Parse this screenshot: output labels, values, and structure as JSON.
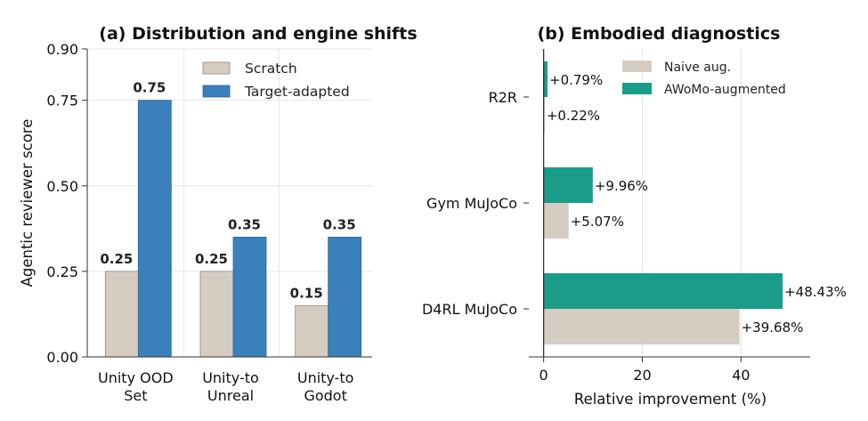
{
  "chart_data": [
    {
      "type": "bar",
      "title": "(a) Distribution and engine shifts",
      "xlabel": "",
      "ylabel": "Agentic reviewer score",
      "categories": [
        [
          "Unity OOD",
          "Set"
        ],
        [
          "Unity-to",
          "Unreal"
        ],
        [
          "Unity-to",
          "Godot"
        ]
      ],
      "series": [
        {
          "name": "Scratch",
          "values": [
            0.25,
            0.25,
            0.15
          ],
          "color": "#d5cdc1"
        },
        {
          "name": "Target-adapted",
          "values": [
            0.75,
            0.35,
            0.35
          ],
          "color": "#3a81bc"
        }
      ],
      "data_labels": [
        [
          "0.25",
          "0.25",
          "0.15"
        ],
        [
          "0.75",
          "0.35",
          "0.35"
        ]
      ],
      "ylim": [
        0,
        0.9
      ],
      "yticks": [
        0.0,
        0.25,
        0.5,
        0.75,
        0.9
      ],
      "ytick_labels": [
        "0.00",
        "0.25",
        "0.50",
        "0.75",
        "0.90"
      ],
      "grid": true,
      "legend_position": "top-right"
    },
    {
      "type": "bar",
      "orientation": "horizontal",
      "title": "(b) Embodied diagnostics",
      "xlabel": "Relative improvement (%)",
      "ylabel": "",
      "categories": [
        "R2R",
        "Gym MuJoCo",
        "D4RL MuJoCo"
      ],
      "series": [
        {
          "name": "Naive aug.",
          "values": [
            0.22,
            5.07,
            39.68
          ],
          "color": "#d5cdc1"
        },
        {
          "name": "AWoMo-augmented",
          "values": [
            0.79,
            9.96,
            48.43
          ],
          "color": "#1a9c8a"
        }
      ],
      "data_labels": [
        [
          "+0.22%",
          "+5.07%",
          "+39.68%"
        ],
        [
          "+0.79%",
          "+9.96%",
          "+48.43%"
        ]
      ],
      "xlim": [
        -3,
        54
      ],
      "xticks": [
        0,
        20,
        40
      ],
      "xtick_labels": [
        "0",
        "20",
        "40"
      ],
      "grid": true,
      "legend_position": "top-right"
    }
  ]
}
